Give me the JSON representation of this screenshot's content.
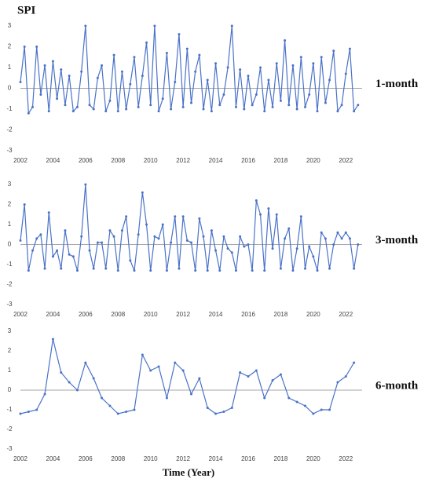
{
  "chart_data": [
    {
      "type": "line",
      "title": "SPI",
      "label": "1-month",
      "color": "#4a72c8",
      "x": [
        2002,
        2002.25,
        2002.5,
        2002.75,
        2003,
        2003.25,
        2003.5,
        2003.75,
        2004,
        2004.25,
        2004.5,
        2004.75,
        2005,
        2005.25,
        2005.5,
        2005.75,
        2006,
        2006.25,
        2006.5,
        2006.75,
        2007,
        2007.25,
        2007.5,
        2007.75,
        2008,
        2008.25,
        2008.5,
        2008.75,
        2009,
        2009.25,
        2009.5,
        2009.75,
        2010,
        2010.25,
        2010.5,
        2010.75,
        2011,
        2011.25,
        2011.5,
        2011.75,
        2012,
        2012.25,
        2012.5,
        2012.75,
        2013,
        2013.25,
        2013.5,
        2013.75,
        2014,
        2014.25,
        2014.5,
        2014.75,
        2015,
        2015.25,
        2015.5,
        2015.75,
        2016,
        2016.25,
        2016.5,
        2016.75,
        2017,
        2017.25,
        2017.5,
        2017.75,
        2018,
        2018.25,
        2018.5,
        2018.75,
        2019,
        2019.25,
        2019.5,
        2019.75,
        2020,
        2020.25,
        2020.5,
        2020.75,
        2021,
        2021.25,
        2021.5,
        2021.75,
        2022,
        2022.25,
        2022.5,
        2022.75
      ],
      "values": [
        0.3,
        2.0,
        -1.2,
        -0.9,
        2.0,
        -0.3,
        1.1,
        -1.1,
        1.3,
        -0.5,
        0.9,
        -0.8,
        0.6,
        -1.1,
        -0.9,
        0.8,
        3.0,
        -0.8,
        -1.0,
        0.5,
        1.1,
        -1.1,
        -0.6,
        1.6,
        -1.1,
        0.8,
        -1.0,
        0.2,
        1.5,
        -0.9,
        0.6,
        2.2,
        -0.8,
        3.0,
        -1.1,
        -0.5,
        1.7,
        -1.0,
        0.3,
        2.6,
        -0.9,
        1.9,
        -0.7,
        0.8,
        1.6,
        -1.0,
        0.4,
        -1.1,
        1.2,
        -0.8,
        -0.3,
        1.0,
        3.0,
        -0.9,
        0.9,
        -1.0,
        0.6,
        -0.8,
        -0.3,
        1.0,
        -1.1,
        0.4,
        -0.9,
        1.2,
        -0.6,
        2.3,
        -0.8,
        1.1,
        -1.0,
        1.5,
        -0.9,
        -0.3,
        1.2,
        -1.1,
        1.5,
        -0.7,
        0.4,
        1.8,
        -1.1,
        -0.8,
        0.7,
        1.9,
        -1.1,
        -0.8
      ],
      "xlim": [
        2002,
        2023
      ],
      "xticks": [
        2002,
        2004,
        2006,
        2008,
        2010,
        2012,
        2014,
        2016,
        2018,
        2020,
        2022
      ],
      "ylim": [
        -3,
        3
      ],
      "yticks": [
        3,
        2,
        1,
        0,
        -1,
        -2,
        -3
      ]
    },
    {
      "type": "line",
      "label": "3-month",
      "color": "#4a72c8",
      "x": [
        2002,
        2002.25,
        2002.5,
        2002.75,
        2003,
        2003.25,
        2003.5,
        2003.75,
        2004,
        2004.25,
        2004.5,
        2004.75,
        2005,
        2005.25,
        2005.5,
        2005.75,
        2006,
        2006.25,
        2006.5,
        2006.75,
        2007,
        2007.25,
        2007.5,
        2007.75,
        2008,
        2008.25,
        2008.5,
        2008.75,
        2009,
        2009.25,
        2009.5,
        2009.75,
        2010,
        2010.25,
        2010.5,
        2010.75,
        2011,
        2011.25,
        2011.5,
        2011.75,
        2012,
        2012.25,
        2012.5,
        2012.75,
        2013,
        2013.25,
        2013.5,
        2013.75,
        2014,
        2014.25,
        2014.5,
        2014.75,
        2015,
        2015.25,
        2015.5,
        2015.75,
        2016,
        2016.25,
        2016.5,
        2016.75,
        2017,
        2017.25,
        2017.5,
        2017.75,
        2018,
        2018.25,
        2018.5,
        2018.75,
        2019,
        2019.25,
        2019.5,
        2019.75,
        2020,
        2020.25,
        2020.5,
        2020.75,
        2021,
        2021.25,
        2021.5,
        2021.75,
        2022,
        2022.25,
        2022.5,
        2022.75
      ],
      "values": [
        0.2,
        2.0,
        -1.3,
        -0.3,
        0.3,
        0.5,
        -1.2,
        1.6,
        -0.6,
        -0.3,
        -1.2,
        0.7,
        -0.5,
        -0.6,
        -1.3,
        0.4,
        3.0,
        -0.3,
        -1.2,
        0.1,
        0.1,
        -1.2,
        0.7,
        0.4,
        -1.3,
        0.7,
        1.4,
        -0.8,
        -1.3,
        0.5,
        2.6,
        1.0,
        -1.3,
        0.4,
        0.3,
        1.0,
        -1.3,
        0.1,
        1.4,
        -1.2,
        1.4,
        0.2,
        0.1,
        -1.3,
        1.3,
        0.4,
        -1.3,
        0.7,
        -0.3,
        -1.3,
        0.4,
        -0.2,
        -0.4,
        -1.3,
        0.4,
        -0.1,
        0.0,
        -1.3,
        2.2,
        1.5,
        -1.3,
        1.8,
        -0.2,
        1.5,
        -1.2,
        0.3,
        0.8,
        -1.3,
        -0.2,
        1.4,
        -1.2,
        -0.1,
        -0.6,
        -1.3,
        0.6,
        0.3,
        -1.2,
        0.0,
        0.6,
        0.3,
        0.6,
        0.3,
        -1.2,
        0.0
      ],
      "xlim": [
        2002,
        2023
      ],
      "xticks": [
        2002,
        2004,
        2006,
        2008,
        2010,
        2012,
        2014,
        2016,
        2018,
        2020,
        2022
      ],
      "ylim": [
        -3,
        3
      ],
      "yticks": [
        3,
        2,
        1,
        0,
        -1,
        -2,
        -3
      ]
    },
    {
      "type": "line",
      "label": "6-month",
      "xlabel": "Time (Year)",
      "color": "#4a72c8",
      "x": [
        2002,
        2002.5,
        2003,
        2003.5,
        2004,
        2004.5,
        2005,
        2005.5,
        2006,
        2006.5,
        2007,
        2007.5,
        2008,
        2008.5,
        2009,
        2009.5,
        2010,
        2010.5,
        2011,
        2011.5,
        2012,
        2012.5,
        2013,
        2013.5,
        2014,
        2014.5,
        2015,
        2015.5,
        2016,
        2016.5,
        2017,
        2017.5,
        2018,
        2018.5,
        2019,
        2019.5,
        2020,
        2020.5,
        2021,
        2021.5,
        2022,
        2022.5
      ],
      "values": [
        -1.2,
        -1.1,
        -1.0,
        -0.2,
        2.6,
        0.9,
        0.4,
        0.0,
        1.4,
        0.6,
        -0.4,
        -0.8,
        -1.2,
        -1.1,
        -1.0,
        1.8,
        1.0,
        1.2,
        -0.4,
        1.4,
        1.0,
        -0.2,
        0.6,
        -0.9,
        -1.2,
        -1.1,
        -0.9,
        0.9,
        0.7,
        1.0,
        -0.4,
        0.5,
        0.8,
        -0.4,
        -0.6,
        -0.8,
        -1.2,
        -1.0,
        -1.0,
        0.4,
        0.7,
        1.4
      ],
      "xlim": [
        2002,
        2023
      ],
      "xticks": [
        2002,
        2004,
        2006,
        2008,
        2010,
        2012,
        2014,
        2016,
        2018,
        2020,
        2022
      ],
      "ylim": [
        -3,
        3
      ],
      "yticks": [
        3,
        2,
        1,
        0,
        -1,
        -2,
        -3
      ]
    }
  ]
}
